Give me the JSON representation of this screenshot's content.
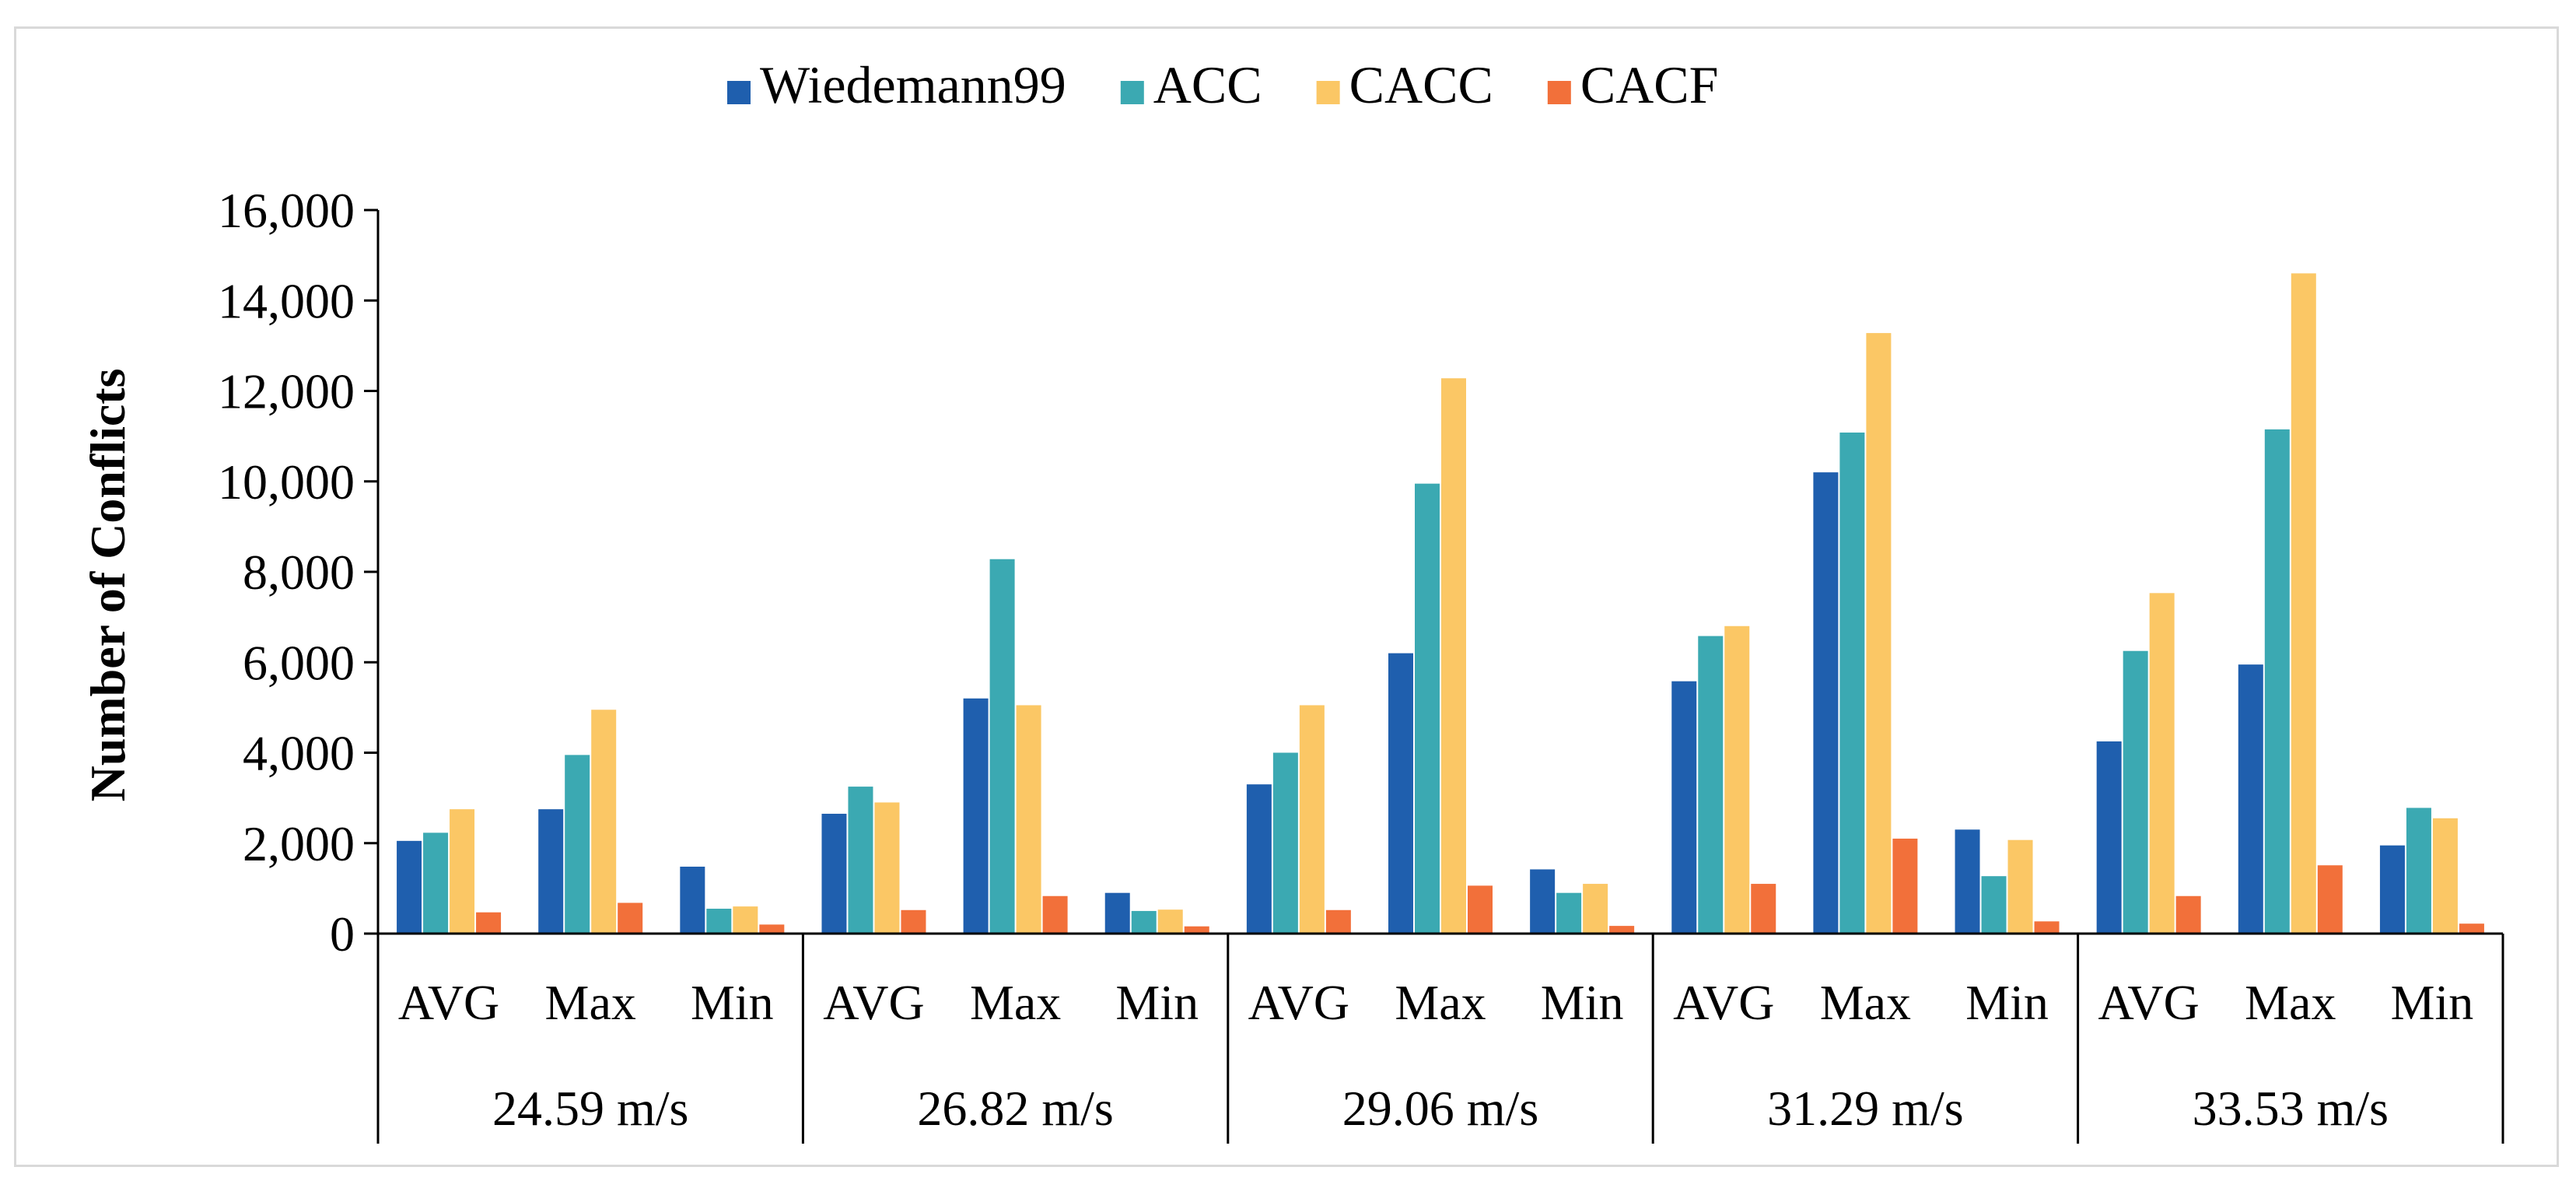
{
  "chart_data": {
    "type": "bar",
    "title": "",
    "xlabel": "",
    "ylabel": "Number of Conflicts",
    "ylim": [
      0,
      16000
    ],
    "yticks": [
      0,
      2000,
      4000,
      6000,
      8000,
      10000,
      12000,
      14000,
      16000
    ],
    "ytick_labels": [
      "0",
      "2,000",
      "4,000",
      "6,000",
      "8,000",
      "10,000",
      "12,000",
      "14,000",
      "16,000"
    ],
    "grid": false,
    "legend_position": "top-center",
    "groups": [
      "24.59 m/s",
      "26.82 m/s",
      "29.06 m/s",
      "31.29 m/s",
      "33.53 m/s"
    ],
    "subcategories": [
      "AVG",
      "Max",
      "Min"
    ],
    "categories": [
      "24.59 m/s AVG",
      "24.59 m/s Max",
      "24.59 m/s Min",
      "26.82 m/s AVG",
      "26.82 m/s Max",
      "26.82 m/s Min",
      "29.06 m/s AVG",
      "29.06 m/s Max",
      "29.06 m/s Min",
      "31.29 m/s AVG",
      "31.29 m/s Max",
      "31.29 m/s Min",
      "33.53 m/s AVG",
      "33.53 m/s Max",
      "33.53 m/s Min"
    ],
    "series": [
      {
        "name": "Wiedemann99",
        "color": "#1f5fae",
        "values": [
          2050,
          2750,
          1480,
          2650,
          5200,
          900,
          3300,
          6200,
          1420,
          5580,
          10200,
          2300,
          4250,
          5950,
          1950
        ]
      },
      {
        "name": "ACC",
        "color": "#3ba9b2",
        "values": [
          2230,
          3950,
          550,
          3250,
          8280,
          500,
          4000,
          9950,
          900,
          6580,
          11080,
          1270,
          6250,
          11150,
          2780
        ]
      },
      {
        "name": "CACC",
        "color": "#fbc765",
        "values": [
          2750,
          4950,
          600,
          2900,
          5050,
          530,
          5050,
          12280,
          1100,
          6800,
          13280,
          2070,
          7530,
          14600,
          2550
        ]
      },
      {
        "name": "CACF",
        "color": "#f2703a",
        "values": [
          470,
          680,
          200,
          520,
          830,
          160,
          520,
          1060,
          170,
          1100,
          2100,
          270,
          830,
          1510,
          220
        ]
      }
    ]
  }
}
